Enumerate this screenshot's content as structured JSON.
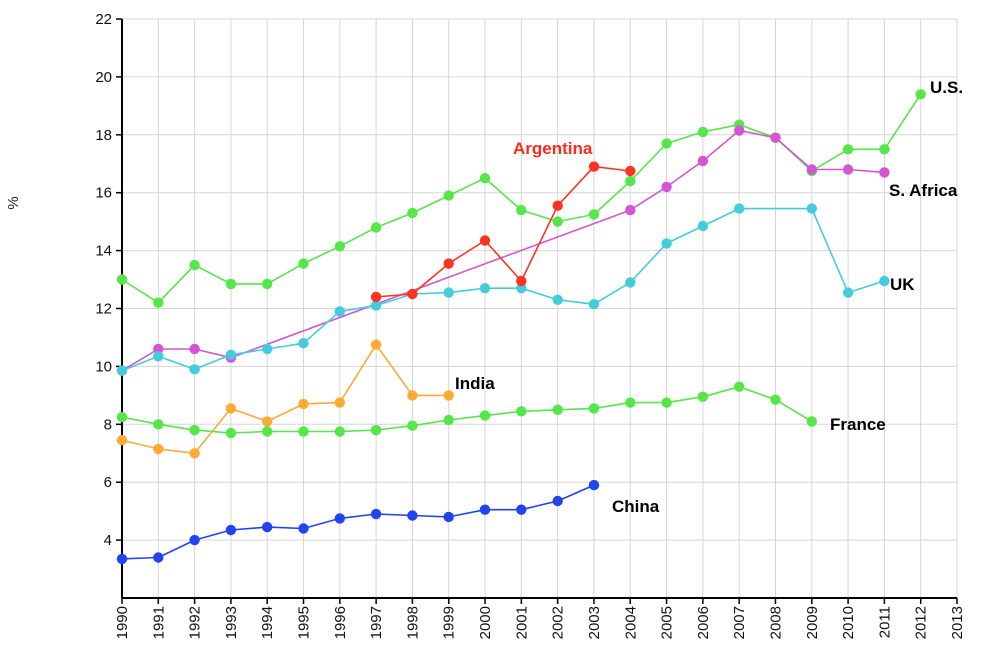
{
  "chart_data": {
    "type": "line",
    "title": "",
    "xlabel": "",
    "ylabel": "%",
    "xlim": [
      1990,
      2013
    ],
    "ylim": [
      2,
      22
    ],
    "x_ticks": [
      "1990",
      "1991",
      "1992",
      "1993",
      "1994",
      "1995",
      "1996",
      "1997",
      "1998",
      "1999",
      "2000",
      "2001",
      "2002",
      "2003",
      "2004",
      "2005",
      "2006",
      "2007",
      "2008",
      "2009",
      "2010",
      "2011",
      "2012",
      "2013"
    ],
    "y_ticks": [
      "4",
      "6",
      "8",
      "10",
      "12",
      "14",
      "16",
      "18",
      "20",
      "22"
    ],
    "grid": true,
    "legend": "inline labels",
    "series": [
      {
        "name": "U.S.",
        "color": "#55e64a",
        "label_style": "black",
        "points": [
          [
            1990,
            13.0
          ],
          [
            1991,
            12.2
          ],
          [
            1992,
            13.5
          ],
          [
            1993,
            12.85
          ],
          [
            1994,
            12.85
          ],
          [
            1995,
            13.55
          ],
          [
            1996,
            14.15
          ],
          [
            1997,
            14.8
          ],
          [
            1998,
            15.3
          ],
          [
            1999,
            15.9
          ],
          [
            2000,
            16.5
          ],
          [
            2001,
            15.4
          ],
          [
            2002,
            15.0
          ],
          [
            2003,
            15.25
          ],
          [
            2004,
            16.4
          ],
          [
            2005,
            17.7
          ],
          [
            2006,
            18.1
          ],
          [
            2007,
            18.35
          ],
          [
            2008,
            17.9
          ],
          [
            2009,
            16.75
          ],
          [
            2010,
            17.5
          ],
          [
            2011,
            17.5
          ],
          [
            2012,
            19.4
          ]
        ]
      },
      {
        "name": "S. Africa",
        "color": "#d455d4",
        "label_style": "black",
        "points": [
          [
            1990,
            9.85
          ],
          [
            1991,
            10.6
          ],
          [
            1992,
            10.6
          ],
          [
            1993,
            10.3
          ],
          [
            2004,
            15.4
          ],
          [
            2005,
            16.2
          ],
          [
            2006,
            17.1
          ],
          [
            2007,
            18.15
          ],
          [
            2008,
            17.9
          ],
          [
            2009,
            16.8
          ],
          [
            2010,
            16.8
          ],
          [
            2011,
            16.7
          ]
        ]
      },
      {
        "name": "UK",
        "color": "#44ccdd",
        "label_style": "black",
        "points": [
          [
            1990,
            9.85
          ],
          [
            1991,
            10.35
          ],
          [
            1992,
            9.9
          ],
          [
            1993,
            10.4
          ],
          [
            1994,
            10.6
          ],
          [
            1995,
            10.8
          ],
          [
            1996,
            11.9
          ],
          [
            1997,
            12.1
          ],
          [
            1998,
            12.5
          ],
          [
            1999,
            12.55
          ],
          [
            2000,
            12.7
          ],
          [
            2001,
            12.7
          ],
          [
            2002,
            12.3
          ],
          [
            2003,
            12.15
          ],
          [
            2004,
            12.9
          ],
          [
            2005,
            14.25
          ],
          [
            2006,
            14.85
          ],
          [
            2007,
            15.45
          ],
          [
            2009,
            15.45
          ],
          [
            2010,
            12.55
          ],
          [
            2011,
            12.95
          ]
        ]
      },
      {
        "name": "Argentina",
        "color": "#ff3322",
        "label_style": "red",
        "points": [
          [
            1997,
            12.4
          ],
          [
            1998,
            12.5
          ],
          [
            1999,
            13.55
          ],
          [
            2000,
            14.35
          ],
          [
            2001,
            12.95
          ],
          [
            2002,
            15.55
          ],
          [
            2003,
            16.9
          ],
          [
            2004,
            16.75
          ]
        ]
      },
      {
        "name": "India",
        "color": "#ffaa33",
        "label_style": "black",
        "points": [
          [
            1990,
            7.45
          ],
          [
            1991,
            7.15
          ],
          [
            1992,
            7.0
          ],
          [
            1993,
            8.55
          ],
          [
            1994,
            8.1
          ],
          [
            1995,
            8.7
          ],
          [
            1996,
            8.75
          ],
          [
            1997,
            10.75
          ],
          [
            1998,
            9.0
          ],
          [
            1999,
            9.0
          ]
        ]
      },
      {
        "name": "France",
        "color": "#55e64a",
        "label_style": "black",
        "points": [
          [
            1990,
            8.25
          ],
          [
            1991,
            8.0
          ],
          [
            1992,
            7.8
          ],
          [
            1993,
            7.7
          ],
          [
            1994,
            7.75
          ],
          [
            1995,
            7.75
          ],
          [
            1996,
            7.75
          ],
          [
            1997,
            7.8
          ],
          [
            1998,
            7.95
          ],
          [
            1999,
            8.15
          ],
          [
            2000,
            8.3
          ],
          [
            2001,
            8.45
          ],
          [
            2002,
            8.5
          ],
          [
            2003,
            8.55
          ],
          [
            2004,
            8.75
          ],
          [
            2005,
            8.75
          ],
          [
            2006,
            8.95
          ],
          [
            2007,
            9.3
          ],
          [
            2008,
            8.85
          ],
          [
            2009,
            8.1
          ]
        ]
      },
      {
        "name": "China",
        "color": "#2244ee",
        "label_style": "black",
        "points": [
          [
            1990,
            3.35
          ],
          [
            1991,
            3.4
          ],
          [
            1992,
            4.0
          ],
          [
            1993,
            4.35
          ],
          [
            1994,
            4.45
          ],
          [
            1995,
            4.4
          ],
          [
            1996,
            4.75
          ],
          [
            1997,
            4.9
          ],
          [
            1998,
            4.85
          ],
          [
            1999,
            4.8
          ],
          [
            2000,
            5.05
          ],
          [
            2001,
            5.05
          ],
          [
            2002,
            5.35
          ],
          [
            2003,
            5.9
          ]
        ]
      }
    ]
  }
}
